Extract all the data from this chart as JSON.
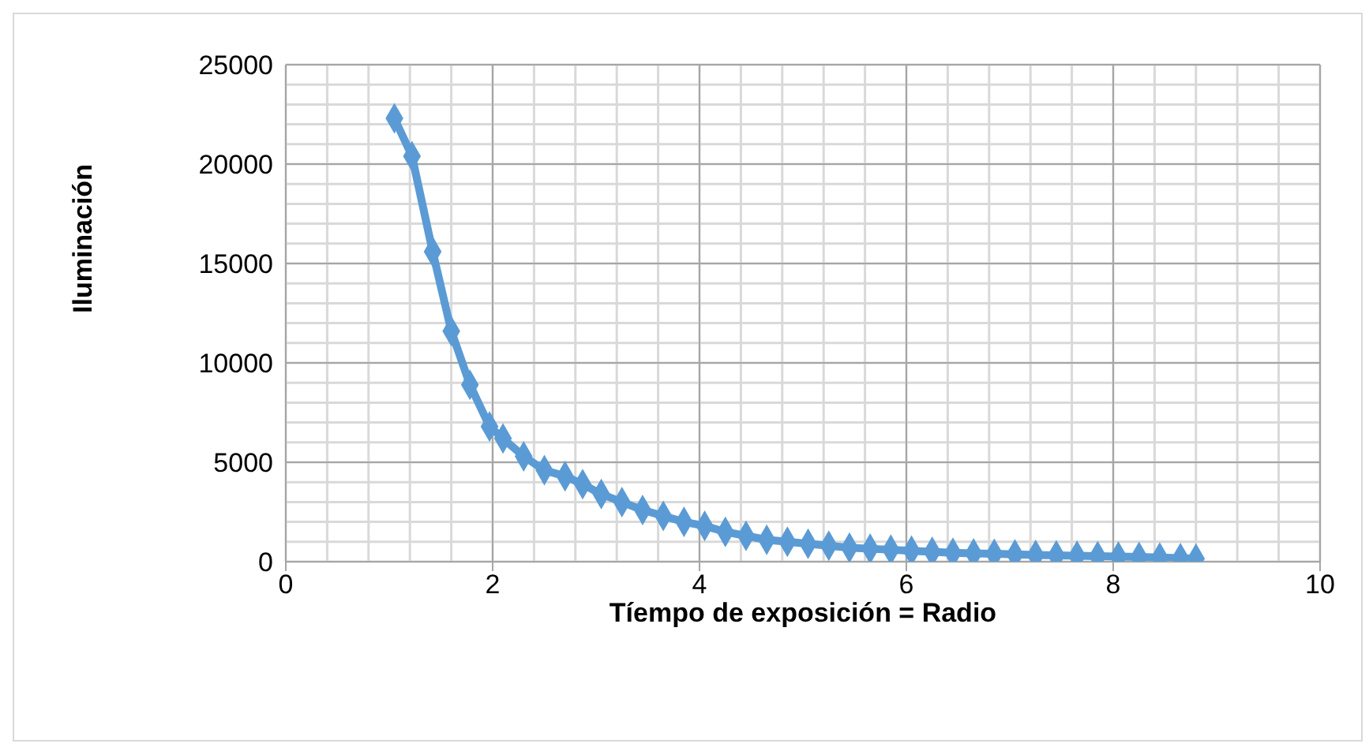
{
  "chart_data": {
    "type": "line",
    "xlabel": "Tíempo de exposición = Radio",
    "ylabel": "Iluminación",
    "x": [
      1.05,
      1.22,
      1.42,
      1.6,
      1.78,
      1.97,
      2.1,
      2.3,
      2.5,
      2.7,
      2.87,
      3.05,
      3.25,
      3.45,
      3.65,
      3.85,
      4.05,
      4.25,
      4.45,
      4.65,
      4.85,
      5.05,
      5.25,
      5.45,
      5.65,
      5.85,
      6.05,
      6.25,
      6.45,
      6.65,
      6.85,
      7.05,
      7.25,
      7.45,
      7.65,
      7.85,
      8.05,
      8.25,
      8.45,
      8.65,
      8.8
    ],
    "series": [
      {
        "color": "#5b9bd5",
        "values": [
          22300,
          20400,
          15600,
          11600,
          8900,
          6800,
          6200,
          5300,
          4600,
          4300,
          3900,
          3400,
          3000,
          2600,
          2300,
          2000,
          1800,
          1500,
          1300,
          1100,
          1000,
          900,
          800,
          700,
          650,
          600,
          550,
          500,
          450,
          420,
          400,
          370,
          340,
          320,
          300,
          280,
          260,
          240,
          210,
          180,
          150
        ]
      }
    ],
    "xlim": [
      0,
      10
    ],
    "xticks": [
      0,
      2,
      4,
      6,
      8,
      10
    ],
    "ylim": [
      0,
      25000
    ],
    "yticks": [
      0,
      5000,
      10000,
      15000,
      20000,
      25000
    ],
    "grid": true,
    "legend": false,
    "marker": "diamond",
    "line_style": "solid"
  }
}
